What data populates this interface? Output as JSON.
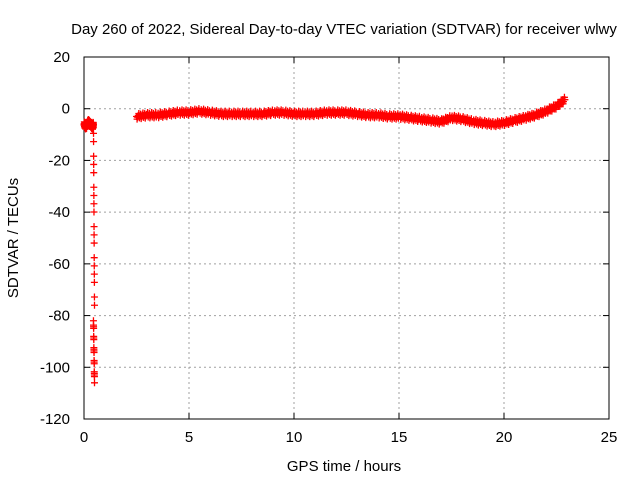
{
  "chart_data": {
    "type": "scatter",
    "title": "Day 260 of 2022, Sidereal Day-to-day VTEC variation (SDTVAR) for receiver wlwy",
    "xlabel": "GPS time / hours",
    "ylabel": "SDTVAR / TECUs",
    "xlim": [
      0,
      25
    ],
    "ylim": [
      -120,
      20
    ],
    "xticks": [
      0,
      5,
      10,
      15,
      20,
      25
    ],
    "yticks": [
      -120,
      -100,
      -80,
      -60,
      -40,
      -20,
      0,
      20
    ],
    "grid": true,
    "marker": "+",
    "color": "#ff0000",
    "series": [
      {
        "name": "wlwy",
        "x": [
          0.0,
          0.1,
          0.2,
          0.3,
          0.4,
          0.45,
          0.5,
          0.45,
          0.5,
          2.5,
          3.0,
          3.5,
          4.0,
          4.5,
          5.0,
          5.5,
          6.0,
          6.5,
          7.0,
          7.5,
          8.0,
          8.5,
          9.0,
          9.5,
          10.0,
          10.5,
          11.0,
          11.5,
          12.0,
          12.5,
          13.0,
          13.5,
          14.0,
          14.5,
          15.0,
          15.5,
          16.0,
          16.5,
          17.0,
          17.5,
          18.0,
          18.5,
          19.0,
          19.5,
          20.0,
          20.5,
          21.0,
          21.5,
          22.0,
          22.5,
          22.9
        ],
        "y": [
          -6,
          -7,
          -5,
          -6,
          -7,
          -6,
          -76,
          -82,
          -106,
          -3,
          -2.5,
          -2.5,
          -2,
          -1.5,
          -1.5,
          -1,
          -1.5,
          -2,
          -2,
          -2,
          -2,
          -2,
          -1.5,
          -1.5,
          -2,
          -2,
          -2,
          -1.5,
          -1.5,
          -1.5,
          -2,
          -2.5,
          -2.5,
          -3,
          -3,
          -3.5,
          -4,
          -4.5,
          -5,
          -3.5,
          -4,
          -5,
          -5.5,
          -6,
          -5.5,
          -4.5,
          -3.5,
          -2.5,
          -1,
          1,
          3.5
        ]
      }
    ]
  }
}
